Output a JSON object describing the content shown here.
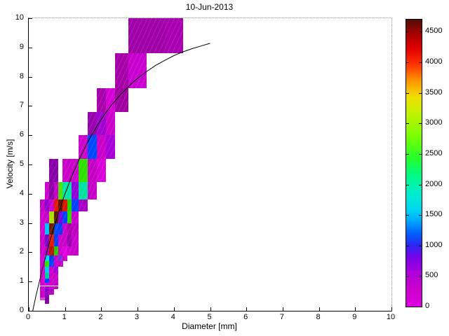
{
  "chart_data": {
    "type": "heatmap",
    "title": "10-Jun-2013",
    "xlabel": "Diameter [mm]",
    "ylabel": "Velocity [m/s]",
    "xlim": [
      0,
      10
    ],
    "ylim": [
      0,
      10
    ],
    "x_ticks": [
      0,
      1,
      2,
      3,
      4,
      5,
      6,
      7,
      8,
      9,
      10
    ],
    "y_ticks": [
      0,
      1,
      2,
      3,
      4,
      5,
      6,
      7,
      8,
      9,
      10
    ],
    "grid": "off",
    "legend": "none",
    "cells_format": "[diameter_lo_mm, diameter_hi_mm, velocity_lo_ms, velocity_hi_ms, color_hex, approx_count]",
    "cells": [
      [
        0.437,
        0.562,
        0.25,
        0.35,
        "#8A00A8",
        600
      ],
      [
        0.312,
        0.437,
        0.35,
        0.45,
        "#D24AD2",
        150
      ],
      [
        0.437,
        0.562,
        0.35,
        0.45,
        "#7C00A0",
        650
      ],
      [
        0.312,
        0.437,
        0.45,
        0.55,
        "#CC00CC",
        250
      ],
      [
        0.437,
        0.562,
        0.45,
        0.55,
        "#8E00B4",
        600
      ],
      [
        0.312,
        0.437,
        0.55,
        0.65,
        "#C800C8",
        250
      ],
      [
        0.437,
        0.562,
        0.55,
        0.65,
        "#9600C8",
        550
      ],
      [
        0.562,
        0.687,
        0.55,
        0.65,
        "#C000C0",
        300
      ],
      [
        0.312,
        0.437,
        0.65,
        0.75,
        "#CC00CC",
        250
      ],
      [
        0.437,
        0.562,
        0.65,
        0.75,
        "#8A00C8",
        620
      ],
      [
        0.562,
        0.687,
        0.65,
        0.75,
        "#A800C8",
        480
      ],
      [
        0.312,
        0.437,
        0.75,
        0.85,
        "#D000D0",
        220
      ],
      [
        0.437,
        0.562,
        0.75,
        0.85,
        "#A800D8",
        500
      ],
      [
        0.562,
        0.687,
        0.75,
        0.85,
        "#CC00CC",
        260
      ],
      [
        0.687,
        0.812,
        0.75,
        0.85,
        "#C800C8",
        280
      ],
      [
        0.312,
        0.437,
        0.85,
        0.95,
        "#D000D0",
        220
      ],
      [
        0.437,
        0.562,
        0.85,
        0.95,
        "#D800D8",
        180
      ],
      [
        0.562,
        0.687,
        0.85,
        0.95,
        "#CC00CC",
        260
      ],
      [
        0.687,
        0.812,
        0.85,
        0.95,
        "#C400C4",
        300
      ],
      [
        0.312,
        0.437,
        0.95,
        1.1,
        "#D000D0",
        220
      ],
      [
        0.437,
        0.562,
        0.95,
        1.1,
        "#0040FF",
        1100
      ],
      [
        0.562,
        0.687,
        0.95,
        1.1,
        "#CC00CC",
        260
      ],
      [
        0.687,
        0.812,
        0.95,
        1.1,
        "#C800C8",
        280
      ],
      [
        0.312,
        0.437,
        1.1,
        1.3,
        "#D400D4",
        200
      ],
      [
        0.437,
        0.562,
        1.1,
        1.3,
        "#00C89E",
        1900
      ],
      [
        0.562,
        0.687,
        1.1,
        1.3,
        "#CC00CC",
        280
      ],
      [
        0.687,
        0.812,
        1.1,
        1.3,
        "#C800C8",
        300
      ],
      [
        0.312,
        0.437,
        1.3,
        1.5,
        "#D000D0",
        220
      ],
      [
        0.437,
        0.562,
        1.3,
        1.5,
        "#00C8F0",
        1550
      ],
      [
        0.562,
        0.687,
        1.3,
        1.5,
        "#CC00CC",
        300
      ],
      [
        0.687,
        0.812,
        1.3,
        1.5,
        "#A000E0",
        720
      ],
      [
        0.312,
        0.437,
        1.5,
        1.7,
        "#D400D4",
        200
      ],
      [
        0.437,
        0.562,
        1.5,
        1.7,
        "#32E000",
        2500
      ],
      [
        0.562,
        0.687,
        1.5,
        1.7,
        "#0048FF",
        1120
      ],
      [
        0.687,
        0.812,
        1.5,
        1.7,
        "#C800C8",
        300
      ],
      [
        0.812,
        0.937,
        1.5,
        1.7,
        "#C400C4",
        320
      ],
      [
        0.312,
        0.437,
        1.7,
        1.9,
        "#D400D4",
        200
      ],
      [
        0.437,
        0.562,
        1.7,
        1.9,
        "#00D8FF",
        1500
      ],
      [
        0.562,
        0.687,
        1.7,
        1.9,
        "#0040F0",
        1080
      ],
      [
        0.687,
        0.812,
        1.7,
        1.9,
        "#CC00CC",
        300
      ],
      [
        0.812,
        0.937,
        1.7,
        1.9,
        "#7830D8",
        760
      ],
      [
        0.937,
        1.062,
        1.7,
        1.9,
        "#D000D0",
        220
      ],
      [
        0.312,
        0.437,
        1.9,
        2.2,
        "#CC00CC",
        280
      ],
      [
        0.437,
        0.562,
        1.9,
        2.2,
        "#BC00BC",
        350
      ],
      [
        0.562,
        0.687,
        1.9,
        2.2,
        "#B81400",
        4280
      ],
      [
        0.687,
        0.812,
        1.9,
        2.2,
        "#28C800",
        2450
      ],
      [
        0.812,
        0.937,
        1.9,
        2.2,
        "#CC00CC",
        300
      ],
      [
        0.937,
        1.062,
        1.9,
        2.2,
        "#E000E0",
        150
      ],
      [
        1.062,
        1.187,
        1.9,
        2.2,
        "#D000D0",
        220
      ],
      [
        1.187,
        1.375,
        1.9,
        2.2,
        "#C800C8",
        280
      ],
      [
        0.312,
        0.437,
        2.2,
        2.6,
        "#CC00CC",
        280
      ],
      [
        0.437,
        0.562,
        2.2,
        2.6,
        "#8000C0",
        640
      ],
      [
        0.562,
        0.687,
        2.2,
        2.6,
        "#E81800",
        3980
      ],
      [
        0.687,
        0.812,
        2.2,
        2.6,
        "#0040FF",
        1100
      ],
      [
        0.812,
        0.937,
        2.2,
        2.6,
        "#CC00CC",
        300
      ],
      [
        0.937,
        1.062,
        2.2,
        2.6,
        "#C800C8",
        320
      ],
      [
        1.062,
        1.187,
        2.2,
        2.6,
        "#9800B0",
        560
      ],
      [
        1.187,
        1.375,
        2.2,
        2.6,
        "#CC00CC",
        280
      ],
      [
        0.312,
        0.437,
        2.6,
        3.0,
        "#D000D0",
        230
      ],
      [
        0.437,
        0.562,
        2.6,
        3.0,
        "#00C0FF",
        1480
      ],
      [
        0.562,
        0.687,
        2.6,
        3.0,
        "#6E1C00",
        4620
      ],
      [
        0.687,
        0.812,
        2.6,
        3.0,
        "#0048FF",
        1120
      ],
      [
        0.812,
        0.937,
        2.6,
        3.0,
        "#0040F0",
        1060
      ],
      [
        0.937,
        1.062,
        2.6,
        3.0,
        "#CC00CC",
        300
      ],
      [
        1.062,
        1.187,
        2.6,
        3.0,
        "#B000B0",
        420
      ],
      [
        1.187,
        1.375,
        2.6,
        3.0,
        "#C000C0",
        360
      ],
      [
        0.312,
        0.437,
        3.0,
        3.4,
        "#D000D0",
        230
      ],
      [
        0.437,
        0.562,
        3.0,
        3.4,
        "#C800C8",
        300
      ],
      [
        0.562,
        0.687,
        3.0,
        3.4,
        "#AAE000",
        3060
      ],
      [
        0.687,
        0.812,
        3.0,
        3.4,
        "#5E1A00",
        4650
      ],
      [
        0.812,
        0.937,
        3.0,
        3.4,
        "#8000E0",
        740
      ],
      [
        0.937,
        1.062,
        3.0,
        3.4,
        "#0040FF",
        1100
      ],
      [
        1.062,
        1.187,
        3.0,
        3.4,
        "#30D800",
        2480
      ],
      [
        1.187,
        1.375,
        3.0,
        3.4,
        "#CC00CC",
        300
      ],
      [
        0.312,
        0.437,
        3.4,
        3.8,
        "#C400C4",
        330
      ],
      [
        0.437,
        0.562,
        3.4,
        3.8,
        "#9000D0",
        600
      ],
      [
        0.562,
        0.687,
        3.4,
        3.8,
        "#CC00CC",
        300
      ],
      [
        0.687,
        0.812,
        3.4,
        3.8,
        "#E01800",
        3950
      ],
      [
        0.812,
        0.937,
        3.4,
        3.8,
        "#661400",
        4640
      ],
      [
        0.937,
        1.062,
        3.4,
        3.8,
        "#D81800",
        4000
      ],
      [
        1.062,
        1.187,
        3.4,
        3.8,
        "#28D000",
        2460
      ],
      [
        1.187,
        1.375,
        3.4,
        3.8,
        "#0040FF",
        1100
      ],
      [
        1.375,
        1.625,
        3.4,
        3.8,
        "#A800C8",
        500
      ],
      [
        0.437,
        0.562,
        3.8,
        4.4,
        "#CC00CC",
        280
      ],
      [
        0.562,
        0.687,
        3.8,
        4.4,
        "#8800A8",
        580
      ],
      [
        0.687,
        0.812,
        3.8,
        4.4,
        "#C800C8",
        300
      ],
      [
        0.812,
        0.937,
        3.8,
        4.4,
        "#50E000",
        2600
      ],
      [
        0.937,
        1.062,
        3.8,
        4.4,
        "#00E8A0",
        2050
      ],
      [
        1.062,
        1.187,
        3.8,
        4.4,
        "#00E0A8",
        2000
      ],
      [
        1.187,
        1.375,
        3.8,
        4.4,
        "#9000D8",
        620
      ],
      [
        1.375,
        1.625,
        3.8,
        4.4,
        "#00E0A0",
        2000
      ],
      [
        1.625,
        1.875,
        3.8,
        4.4,
        "#C800C8",
        300
      ],
      [
        0.562,
        0.687,
        4.4,
        5.2,
        "#8800A8",
        580
      ],
      [
        0.687,
        0.812,
        4.4,
        5.2,
        "#8A00A8",
        570
      ],
      [
        0.937,
        1.062,
        4.4,
        5.2,
        "#CC00CC",
        280
      ],
      [
        1.062,
        1.187,
        4.4,
        5.2,
        "#C800C8",
        300
      ],
      [
        1.187,
        1.375,
        4.4,
        5.2,
        "#CC00CC",
        280
      ],
      [
        1.375,
        1.625,
        4.4,
        5.2,
        "#30E000",
        2500
      ],
      [
        1.625,
        1.875,
        4.4,
        5.2,
        "#C400C4",
        320
      ],
      [
        1.875,
        2.125,
        4.4,
        5.2,
        "#D800D8",
        180
      ],
      [
        1.375,
        1.625,
        5.2,
        6.0,
        "#CC00CC",
        280
      ],
      [
        1.625,
        1.875,
        5.2,
        6.0,
        "#0048FF",
        1120
      ],
      [
        1.875,
        2.125,
        5.2,
        6.0,
        "#C800C8",
        300
      ],
      [
        2.125,
        2.375,
        5.2,
        6.0,
        "#A800D8",
        520
      ],
      [
        1.625,
        1.875,
        6.0,
        6.8,
        "#9800B0",
        540
      ],
      [
        1.875,
        2.125,
        6.0,
        6.8,
        "#A000D0",
        520
      ],
      [
        2.125,
        2.375,
        6.0,
        6.8,
        "#CC00CC",
        280
      ],
      [
        1.875,
        2.125,
        6.8,
        7.6,
        "#A800A8",
        480
      ],
      [
        2.125,
        2.375,
        6.8,
        7.6,
        "#D400D4",
        200
      ],
      [
        2.375,
        2.75,
        6.8,
        7.6,
        "#A000A0",
        500
      ],
      [
        2.375,
        2.75,
        7.6,
        8.8,
        "#A800A8",
        480
      ],
      [
        2.75,
        3.25,
        7.6,
        8.8,
        "#C800D0",
        300
      ],
      [
        2.75,
        3.25,
        8.8,
        10.0,
        "#A000A8",
        490
      ],
      [
        3.25,
        3.75,
        8.8,
        10.0,
        "#A000A8",
        490
      ],
      [
        3.75,
        4.25,
        8.8,
        10.0,
        "#A800B0",
        470
      ]
    ],
    "curve": {
      "points": [
        [
          0.11,
          0.0
        ],
        [
          0.2,
          0.52
        ],
        [
          0.4,
          1.55
        ],
        [
          0.6,
          2.46
        ],
        [
          0.8,
          3.28
        ],
        [
          1.0,
          4.0
        ],
        [
          1.2,
          4.64
        ],
        [
          1.4,
          5.2
        ],
        [
          1.6,
          5.71
        ],
        [
          1.8,
          6.15
        ],
        [
          2.0,
          6.55
        ],
        [
          2.25,
          6.98
        ],
        [
          2.5,
          7.35
        ],
        [
          2.75,
          7.67
        ],
        [
          3.0,
          7.95
        ],
        [
          3.25,
          8.18
        ],
        [
          3.5,
          8.39
        ],
        [
          3.75,
          8.56
        ],
        [
          4.0,
          8.72
        ],
        [
          4.25,
          8.85
        ],
        [
          4.5,
          8.96
        ],
        [
          4.75,
          9.05
        ],
        [
          5.0,
          9.14
        ]
      ],
      "color": "#000000"
    },
    "colorbar": {
      "min": 0,
      "max": 4700,
      "ticks": [
        0,
        500,
        1000,
        1500,
        2000,
        2500,
        3000,
        3500,
        4000,
        4500
      ],
      "stops": [
        [
          0.0,
          "#DF00DF"
        ],
        [
          0.06,
          "#CC00CC"
        ],
        [
          0.11,
          "#B400D8"
        ],
        [
          0.17,
          "#7A00E8"
        ],
        [
          0.215,
          "#2A28F2"
        ],
        [
          0.255,
          "#0060FF"
        ],
        [
          0.3,
          "#00AAFF"
        ],
        [
          0.34,
          "#00D8F0"
        ],
        [
          0.4,
          "#00F0C8"
        ],
        [
          0.46,
          "#00FA80"
        ],
        [
          0.52,
          "#28FF28"
        ],
        [
          0.6,
          "#80FF00"
        ],
        [
          0.68,
          "#C8F000"
        ],
        [
          0.73,
          "#F0E000"
        ],
        [
          0.79,
          "#FF9000"
        ],
        [
          0.845,
          "#FF3000"
        ],
        [
          0.9,
          "#E00000"
        ],
        [
          0.95,
          "#A80000"
        ],
        [
          1.0,
          "#501008"
        ]
      ]
    }
  }
}
